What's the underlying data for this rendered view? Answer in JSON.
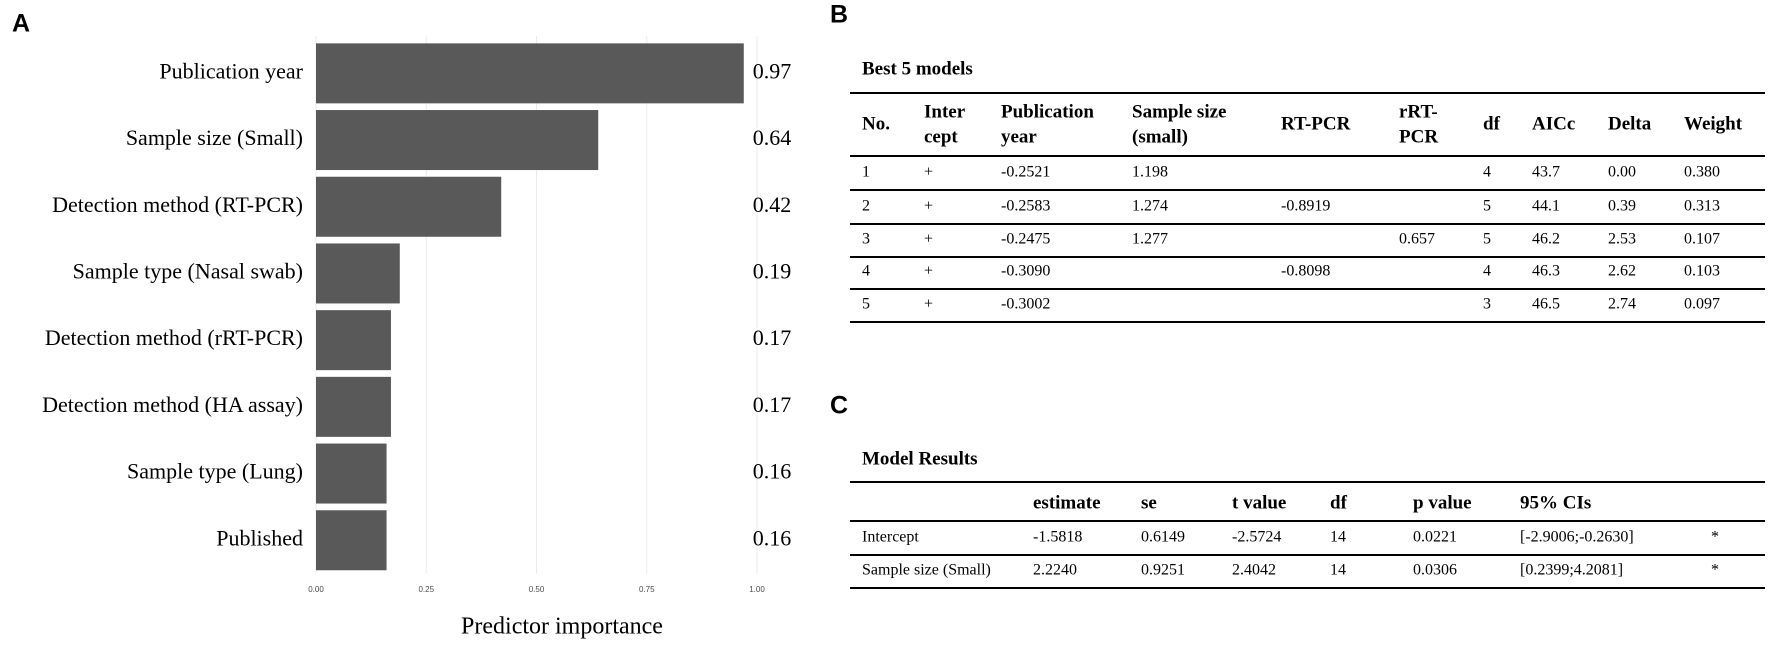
{
  "chart_data": {
    "type": "hbar",
    "x_label": "Predictor importance",
    "categories": [
      "Publication year",
      "Sample size (Small)",
      "Detection method (RT-PCR)",
      "Sample type (Nasal swab)",
      "Detection method (rRT-PCR)",
      "Detection method (HA assay)",
      "Sample type (Lung)",
      "Published"
    ],
    "values": [
      0.97,
      0.64,
      0.42,
      0.19,
      0.17,
      0.17,
      0.16,
      0.16
    ],
    "color": "#595959",
    "xlim": [
      0,
      1
    ],
    "xticks": [
      {
        "value": 0,
        "label": "0.00"
      },
      {
        "value": 0.25,
        "label": "0.25"
      },
      {
        "value": 0.5,
        "label": "0.50"
      },
      {
        "value": 0.75,
        "label": "0.75"
      },
      {
        "value": 1,
        "label": "1.00"
      }
    ],
    "grid": true
  },
  "panel_labels": [
    "A",
    "B",
    "C"
  ],
  "table_b": {
    "title": "Best 5 models",
    "header": [
      [
        "No."
      ],
      [
        "Inter",
        "cept"
      ],
      [
        "Publication",
        "year"
      ],
      [
        "Sample size",
        "(small)"
      ],
      [
        "RT-PCR"
      ],
      [
        "rRT-",
        "PCR"
      ],
      [
        "df"
      ],
      [
        "AICc"
      ],
      [
        "Delta"
      ],
      [
        "Weight"
      ]
    ],
    "rows": [
      [
        "1",
        "+",
        "-0.2521",
        "1.198",
        null,
        null,
        "4",
        "43.7",
        "0.00",
        "0.380"
      ],
      [
        "2",
        "+",
        "-0.2583",
        "1.274",
        "-0.8919",
        null,
        "5",
        "44.1",
        "0.39",
        "0.313"
      ],
      [
        "3",
        "+",
        "-0.2475",
        "1.277",
        null,
        "0.657",
        "5",
        "46.2",
        "2.53",
        "0.107"
      ],
      [
        "4",
        "+",
        "-0.3090",
        null,
        "-0.8098",
        null,
        "4",
        "46.3",
        "2.62",
        "0.103"
      ],
      [
        "5",
        "+",
        "-0.3002",
        null,
        null,
        null,
        "3",
        "46.5",
        "2.74",
        "0.097"
      ]
    ]
  },
  "table_c": {
    "title": "Model Results",
    "header": [
      null,
      "estimate",
      "se",
      "t value",
      "df",
      "p value",
      "95% CIs",
      null
    ],
    "rows": [
      [
        "Intercept",
        "-1.5818",
        "0.6149",
        "-2.5724",
        "14",
        "0.0221",
        "[-2.9006;-0.2630]",
        "*"
      ],
      [
        "Sample size (Small)",
        "2.2240",
        "0.9251",
        "2.4042",
        "14",
        "0.0306",
        "[0.2399;4.2081]",
        "*"
      ]
    ]
  }
}
